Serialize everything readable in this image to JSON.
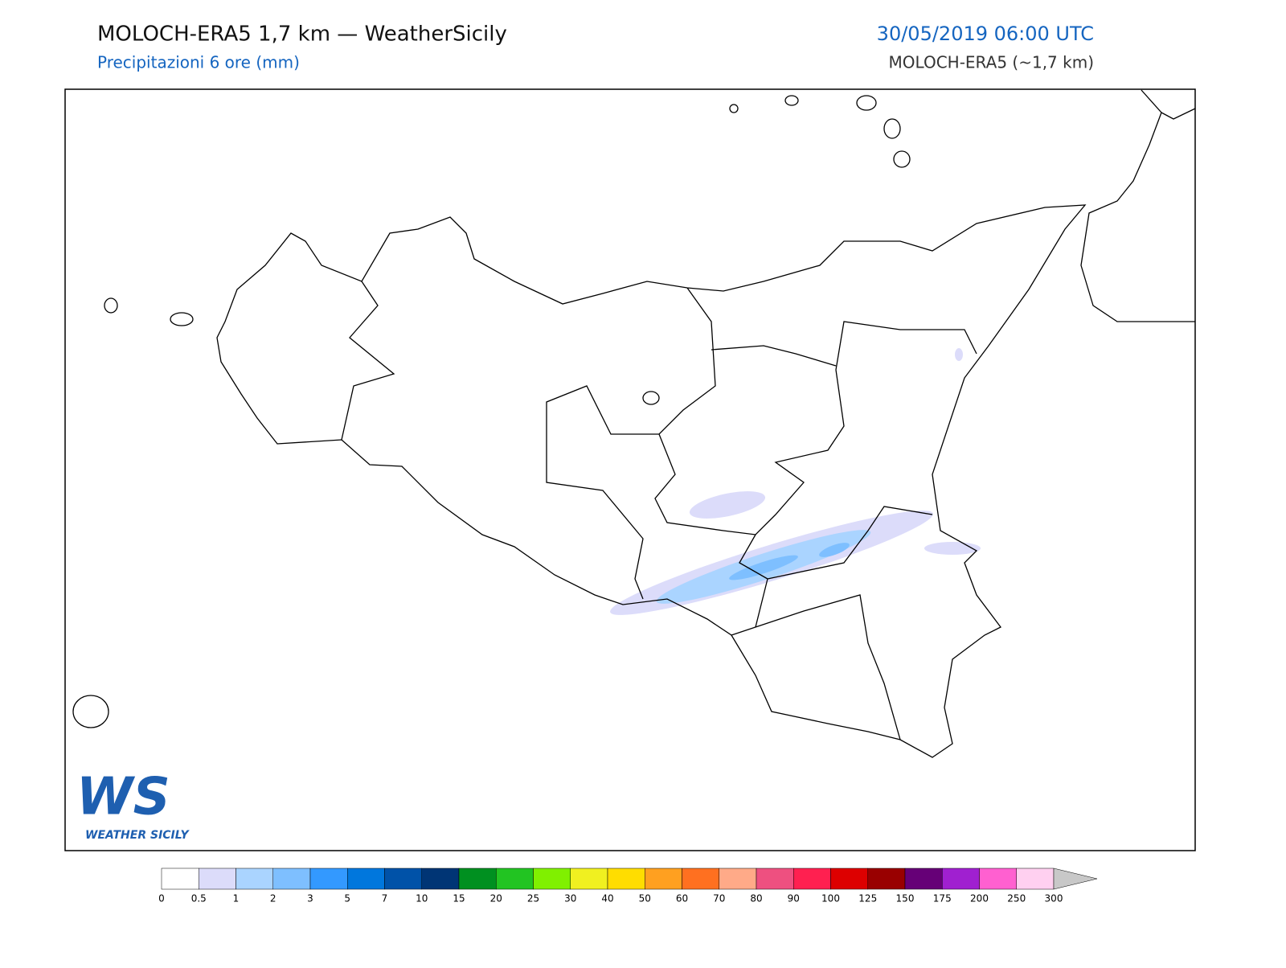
{
  "header": {
    "title": "MOLOCH-ERA5 1,7 km — WeatherSicily",
    "subtitle": "Precipitazioni 6 ore (mm)",
    "datetime": "30/05/2019 06:00 UTC",
    "model": "MOLOCH-ERA5 (~1,7 km)"
  },
  "colorbar": {
    "ticks": [
      0,
      0.5,
      1,
      2,
      3,
      5,
      7,
      10,
      15,
      20,
      25,
      30,
      40,
      50,
      60,
      70,
      80,
      90,
      100,
      125,
      150,
      175,
      200,
      250,
      300
    ],
    "colors": [
      "#ffffff",
      "#dcdcfa",
      "#aad4ff",
      "#7ebfff",
      "#3399ff",
      "#0077dd",
      "#0052a8",
      "#003575",
      "#009020",
      "#22c422",
      "#80f000",
      "#f0f020",
      "#ffdd00",
      "#ffa020",
      "#ff7020",
      "#ffaa88",
      "#ee5080",
      "#ff2050",
      "#dd0000",
      "#990000",
      "#660077",
      "#a020d0",
      "#ff60d0",
      "#ffd0f0"
    ],
    "extend_color": "#c8c8c8"
  },
  "logo": {
    "mark": "WS",
    "caption": "WEATHER SICILY"
  }
}
